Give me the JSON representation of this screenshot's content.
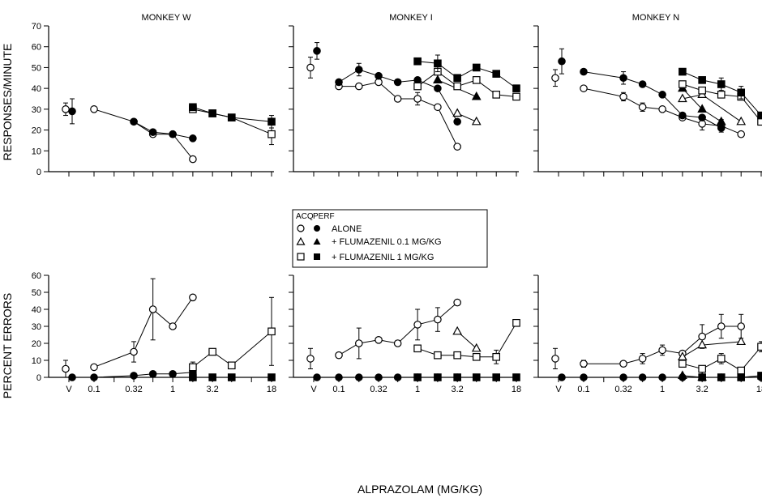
{
  "figure": {
    "ylabel_top": "RESPONSES/MINUTE",
    "ylabel_bottom": "PERCENT ERRORS",
    "xlabel": "ALPRAZOLAM (MG/KG)"
  },
  "legend": {
    "head_acq": "ACQ",
    "head_perf": "PERF",
    "rows": [
      {
        "label": "ALONE",
        "shape": "circle"
      },
      {
        "label": "+ FLUMAZENIL  0.1 MG/KG",
        "shape": "triangle"
      },
      {
        "label": "+ FLUMAZENIL  1 MG/KG",
        "shape": "square"
      }
    ]
  },
  "chart_data": {
    "type": "scatter",
    "x_scale": "log",
    "x_tick_labels": [
      "V",
      "0.1",
      "0.32",
      "1",
      "3.2",
      "18"
    ],
    "x_tick_values": [
      0.1,
      0.32,
      1,
      3.2,
      18
    ],
    "top_ylim": [
      0,
      70
    ],
    "top_yticks": [
      0,
      10,
      20,
      30,
      40,
      50,
      60,
      70
    ],
    "bottom_ylim": [
      0,
      60
    ],
    "bottom_yticks": [
      0,
      10,
      20,
      30,
      40,
      50,
      60
    ],
    "panels": [
      {
        "title": "MONKEY W",
        "top": {
          "vehicle": [
            {
              "shape": "circle",
              "fill": "open",
              "y": 30,
              "err": 3
            },
            {
              "shape": "circle",
              "fill": "filled",
              "y": 29,
              "err": 6
            }
          ],
          "series": [
            {
              "shape": "circle",
              "fill": "open",
              "x": [
                0.1,
                0.32,
                0.56,
                1,
                1.8
              ],
              "y": [
                30,
                24,
                18,
                18,
                6
              ],
              "err": [
                0,
                0,
                0,
                0,
                0
              ]
            },
            {
              "shape": "circle",
              "fill": "filled",
              "x": [
                0.32,
                0.56,
                1,
                1.8
              ],
              "y": [
                24,
                19,
                18,
                16
              ],
              "err": [
                0,
                0,
                0,
                0
              ]
            },
            {
              "shape": "square",
              "fill": "open",
              "x": [
                1.8,
                3.2,
                5.6,
                18
              ],
              "y": [
                30,
                28,
                26,
                18
              ],
              "err": [
                0,
                0,
                0,
                5
              ]
            },
            {
              "shape": "square",
              "fill": "filled",
              "x": [
                1.8,
                3.2,
                5.6,
                18
              ],
              "y": [
                31,
                28,
                26,
                24
              ],
              "err": [
                0,
                0,
                0,
                3
              ]
            }
          ]
        },
        "bottom": {
          "vehicle": [
            {
              "shape": "circle",
              "fill": "open",
              "y": 5,
              "err": 5
            },
            {
              "shape": "circle",
              "fill": "filled",
              "y": 0,
              "err": 0
            }
          ],
          "series": [
            {
              "shape": "circle",
              "fill": "open",
              "x": [
                0.1,
                0.32,
                0.56,
                1,
                1.8
              ],
              "y": [
                6,
                15,
                40,
                30,
                47
              ],
              "err": [
                0,
                6,
                18,
                0,
                0
              ]
            },
            {
              "shape": "circle",
              "fill": "filled",
              "x": [
                0.1,
                0.32,
                0.56,
                1,
                1.8
              ],
              "y": [
                0,
                1,
                2,
                2,
                3
              ],
              "err": [
                0,
                0,
                0,
                0,
                0
              ]
            },
            {
              "shape": "square",
              "fill": "open",
              "x": [
                1.8,
                3.2,
                5.6,
                18
              ],
              "y": [
                6,
                15,
                7,
                27
              ],
              "err": [
                3,
                0,
                0,
                20
              ]
            },
            {
              "shape": "square",
              "fill": "filled",
              "x": [
                1.8,
                3.2,
                5.6,
                18
              ],
              "y": [
                0,
                0,
                0,
                0
              ],
              "err": [
                0,
                0,
                0,
                0
              ]
            }
          ]
        }
      },
      {
        "title": "MONKEY I",
        "top": {
          "vehicle": [
            {
              "shape": "circle",
              "fill": "open",
              "y": 50,
              "err": 5
            },
            {
              "shape": "circle",
              "fill": "filled",
              "y": 58,
              "err": 4
            }
          ],
          "series": [
            {
              "shape": "circle",
              "fill": "open",
              "x": [
                0.1,
                0.18,
                0.32,
                0.56,
                1,
                1.8,
                3.2
              ],
              "y": [
                41,
                41,
                43,
                35,
                35,
                31,
                12
              ],
              "err": [
                0,
                0,
                0,
                0,
                3,
                0,
                0
              ]
            },
            {
              "shape": "circle",
              "fill": "filled",
              "x": [
                0.1,
                0.18,
                0.32,
                0.56,
                1,
                1.8,
                3.2
              ],
              "y": [
                43,
                49,
                46,
                43,
                44,
                40,
                24
              ],
              "err": [
                0,
                3,
                0,
                0,
                0,
                0,
                0
              ]
            },
            {
              "shape": "triangle",
              "fill": "open",
              "x": [
                3.2,
                5.6
              ],
              "y": [
                28,
                24
              ],
              "err": [
                0,
                0
              ]
            },
            {
              "shape": "triangle",
              "fill": "filled",
              "x": [
                1.8,
                5.6
              ],
              "y": [
                44,
                36
              ],
              "err": [
                0,
                0
              ]
            },
            {
              "shape": "square",
              "fill": "open",
              "x": [
                1,
                1.8,
                3.2,
                5.6,
                10,
                18
              ],
              "y": [
                41,
                48,
                41,
                44,
                37,
                36
              ],
              "err": [
                0,
                0,
                0,
                0,
                0,
                0
              ]
            },
            {
              "shape": "square",
              "fill": "filled",
              "x": [
                1,
                1.8,
                3.2,
                5.6,
                10,
                18
              ],
              "y": [
                53,
                52,
                45,
                50,
                47,
                40
              ],
              "err": [
                0,
                4,
                0,
                0,
                0,
                0
              ]
            }
          ]
        },
        "bottom": {
          "vehicle": [
            {
              "shape": "circle",
              "fill": "open",
              "y": 11,
              "err": 6
            },
            {
              "shape": "circle",
              "fill": "filled",
              "y": 0,
              "err": 0
            }
          ],
          "series": [
            {
              "shape": "circle",
              "fill": "open",
              "x": [
                0.1,
                0.18,
                0.32,
                0.56,
                1,
                1.8,
                3.2
              ],
              "y": [
                13,
                20,
                22,
                20,
                31,
                34,
                44
              ],
              "err": [
                0,
                9,
                0,
                0,
                9,
                7,
                0
              ]
            },
            {
              "shape": "circle",
              "fill": "filled",
              "x": [
                0.1,
                0.18,
                0.32,
                0.56,
                1,
                1.8,
                3.2
              ],
              "y": [
                0,
                0,
                0,
                0,
                0,
                0,
                0
              ],
              "err": [
                0,
                0,
                0,
                0,
                0,
                0,
                0
              ]
            },
            {
              "shape": "triangle",
              "fill": "open",
              "x": [
                3.2,
                5.6
              ],
              "y": [
                27,
                17
              ],
              "err": [
                0,
                0
              ]
            },
            {
              "shape": "square",
              "fill": "open",
              "x": [
                1,
                1.8,
                3.2,
                5.6,
                10,
                18
              ],
              "y": [
                17,
                13,
                13,
                12,
                12,
                32
              ],
              "err": [
                0,
                2,
                0,
                0,
                4,
                0
              ]
            },
            {
              "shape": "square",
              "fill": "filled",
              "x": [
                1,
                1.8,
                3.2,
                5.6,
                10,
                18
              ],
              "y": [
                0,
                0,
                0,
                0,
                0,
                0
              ],
              "err": [
                0,
                0,
                0,
                0,
                0,
                0
              ]
            }
          ]
        }
      },
      {
        "title": "MONKEY N",
        "top": {
          "vehicle": [
            {
              "shape": "circle",
              "fill": "open",
              "y": 45,
              "err": 4
            },
            {
              "shape": "circle",
              "fill": "filled",
              "y": 53,
              "err": 6
            }
          ],
          "series": [
            {
              "shape": "circle",
              "fill": "open",
              "x": [
                0.1,
                0.32,
                0.56,
                1,
                1.8,
                3.2,
                5.6,
                10
              ],
              "y": [
                40,
                36,
                31,
                30,
                26,
                23,
                22,
                18
              ],
              "err": [
                0,
                2,
                2,
                0,
                0,
                3,
                3,
                0
              ]
            },
            {
              "shape": "circle",
              "fill": "filled",
              "x": [
                0.1,
                0.32,
                0.56,
                1,
                1.8,
                3.2,
                5.6
              ],
              "y": [
                48,
                45,
                42,
                37,
                27,
                26,
                21
              ],
              "err": [
                0,
                3,
                0,
                0,
                0,
                0,
                0
              ]
            },
            {
              "shape": "triangle",
              "fill": "open",
              "x": [
                1.8,
                3.2,
                10
              ],
              "y": [
                35,
                37,
                24
              ],
              "err": [
                0,
                0,
                0
              ]
            },
            {
              "shape": "triangle",
              "fill": "filled",
              "x": [
                1.8,
                3.2,
                5.6
              ],
              "y": [
                40,
                30,
                24
              ],
              "err": [
                0,
                0,
                0
              ]
            },
            {
              "shape": "square",
              "fill": "open",
              "x": [
                1.8,
                3.2,
                5.6,
                10,
                18
              ],
              "y": [
                42,
                39,
                37,
                36,
                24
              ],
              "err": [
                0,
                0,
                0,
                0,
                0
              ]
            },
            {
              "shape": "square",
              "fill": "filled",
              "x": [
                1.8,
                3.2,
                5.6,
                10,
                18
              ],
              "y": [
                48,
                44,
                42,
                38,
                27
              ],
              "err": [
                0,
                0,
                3,
                3,
                0
              ]
            }
          ]
        },
        "bottom": {
          "vehicle": [
            {
              "shape": "circle",
              "fill": "open",
              "y": 11,
              "err": 6
            },
            {
              "shape": "circle",
              "fill": "filled",
              "y": 0,
              "err": 0
            }
          ],
          "series": [
            {
              "shape": "circle",
              "fill": "open",
              "x": [
                0.1,
                0.32,
                0.56,
                1,
                1.8,
                3.2,
                5.6,
                10
              ],
              "y": [
                8,
                8,
                11,
                16,
                14,
                24,
                30,
                30
              ],
              "err": [
                2,
                0,
                3,
                3,
                0,
                7,
                7,
                7
              ]
            },
            {
              "shape": "circle",
              "fill": "filled",
              "x": [
                0.1,
                0.32,
                0.56,
                1,
                1.8,
                3.2,
                5.6,
                10,
                18
              ],
              "y": [
                0,
                0,
                0,
                0,
                0,
                0,
                0,
                0,
                0
              ],
              "err": [
                0,
                0,
                0,
                0,
                0,
                0,
                0,
                0,
                0
              ]
            },
            {
              "shape": "triangle",
              "fill": "open",
              "x": [
                1.8,
                3.2,
                10
              ],
              "y": [
                12,
                19,
                21
              ],
              "err": [
                0,
                0,
                0
              ]
            },
            {
              "shape": "triangle",
              "fill": "filled",
              "x": [
                1.8,
                3.2
              ],
              "y": [
                1,
                0
              ],
              "err": [
                0,
                0
              ]
            },
            {
              "shape": "square",
              "fill": "open",
              "x": [
                1.8,
                3.2,
                5.6,
                10,
                18
              ],
              "y": [
                8,
                5,
                11,
                4,
                18
              ],
              "err": [
                0,
                0,
                3,
                0,
                3
              ]
            },
            {
              "shape": "square",
              "fill": "filled",
              "x": [
                3.2,
                5.6,
                10,
                18
              ],
              "y": [
                0,
                0,
                0,
                1
              ],
              "err": [
                0,
                0,
                0,
                0
              ]
            }
          ]
        }
      }
    ]
  }
}
